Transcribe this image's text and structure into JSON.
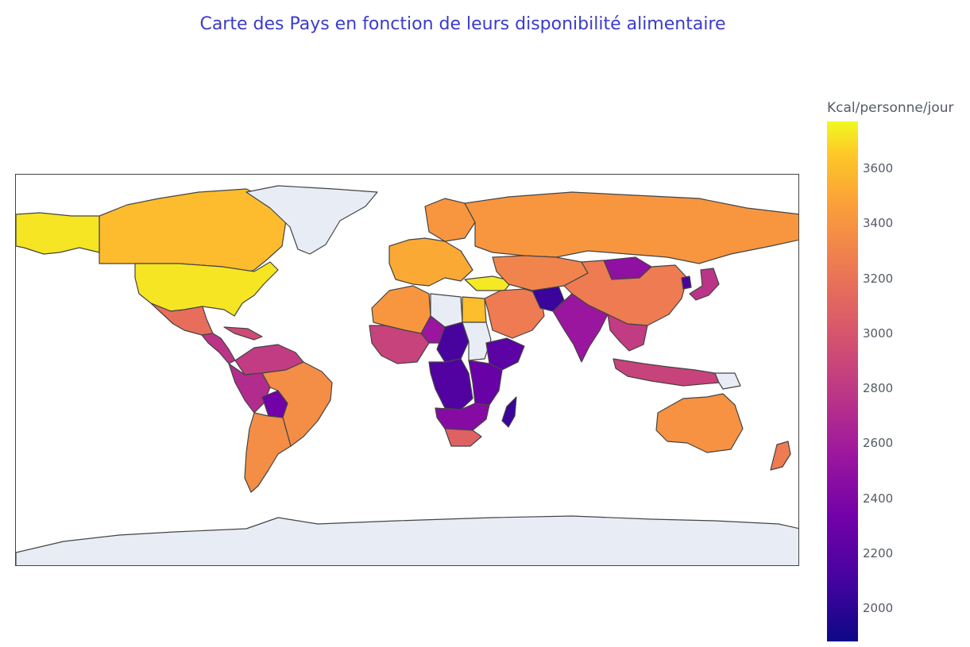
{
  "title": "Carte des Pays en fonction de leurs disponibilité alimentaire",
  "colorbar": {
    "title": "Kcal/personne/jour",
    "min": 1880,
    "max": 3770,
    "ticks": [
      "2000",
      "2200",
      "2400",
      "2600",
      "2800",
      "3000",
      "3200",
      "3400",
      "3600"
    ],
    "colorscale": [
      "#0d0887",
      "#46039f",
      "#7201a8",
      "#9c179e",
      "#bd3786",
      "#d8576b",
      "#ed7953",
      "#fb9f3a",
      "#fdca26",
      "#f0f921"
    ],
    "no_data_color": "#e8edf5",
    "border_color": "#444444"
  },
  "chart_data": {
    "type": "choropleth",
    "projection": "equirectangular",
    "value_label": "Kcal/personne/jour",
    "regions": [
      {
        "name": "Canada",
        "value": 3490
      },
      {
        "name": "United States",
        "value": 3680
      },
      {
        "name": "Alaska",
        "value": 3680
      },
      {
        "name": "Greenland",
        "value": null
      },
      {
        "name": "Mexico",
        "value": 3070
      },
      {
        "name": "Central America",
        "value": 2700
      },
      {
        "name": "Caribbean",
        "value": 2850
      },
      {
        "name": "Colombia / Venezuela",
        "value": 2750
      },
      {
        "name": "Peru / Ecuador",
        "value": 2650
      },
      {
        "name": "Bolivia",
        "value": 2300
      },
      {
        "name": "Brazil",
        "value": 3250
      },
      {
        "name": "Argentina / Chile",
        "value": 3250
      },
      {
        "name": "Western Europe",
        "value": 3400
      },
      {
        "name": "Scandinavia",
        "value": 3300
      },
      {
        "name": "Russia",
        "value": 3300
      },
      {
        "name": "Turkey",
        "value": 3700
      },
      {
        "name": "North Africa",
        "value": 3300
      },
      {
        "name": "Libya",
        "value": null
      },
      {
        "name": "Egypt",
        "value": 3500
      },
      {
        "name": "West Africa",
        "value": 2800
      },
      {
        "name": "Sahel",
        "value": 2500
      },
      {
        "name": "Chad / CAR",
        "value": 2100
      },
      {
        "name": "Sudan",
        "value": null
      },
      {
        "name": "Ethiopia / Horn",
        "value": 2200
      },
      {
        "name": "Central Africa",
        "value": 2150
      },
      {
        "name": "East Africa",
        "value": 2250
      },
      {
        "name": "Southern Africa",
        "value": 2400
      },
      {
        "name": "South Africa",
        "value": 3000
      },
      {
        "name": "Madagascar",
        "value": 2050
      },
      {
        "name": "Middle East",
        "value": 3150
      },
      {
        "name": "Afghanistan",
        "value": 2050
      },
      {
        "name": "Kazakhstan / Central Asia",
        "value": 3200
      },
      {
        "name": "Mongolia",
        "value": 2450
      },
      {
        "name": "China",
        "value": 3150
      },
      {
        "name": "India",
        "value": 2500
      },
      {
        "name": "Southeast Asia",
        "value": 2750
      },
      {
        "name": "North Korea",
        "value": 2100
      },
      {
        "name": "Japan",
        "value": 2700
      },
      {
        "name": "Indonesia",
        "value": 2800
      },
      {
        "name": "Papua New Guinea",
        "value": null
      },
      {
        "name": "Australia",
        "value": 3280
      },
      {
        "name": "New Zealand",
        "value": 3150
      },
      {
        "name": "Antarctica",
        "value": null
      }
    ]
  }
}
